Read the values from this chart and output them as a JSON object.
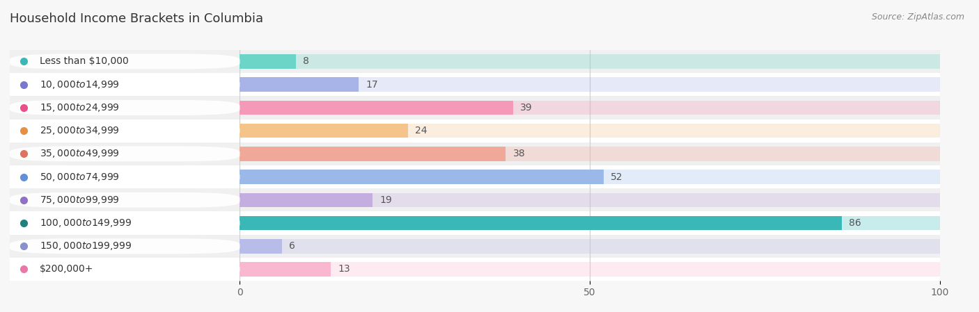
{
  "title": "Household Income Brackets in Columbia",
  "source": "Source: ZipAtlas.com",
  "categories": [
    "Less than $10,000",
    "$10,000 to $14,999",
    "$15,000 to $24,999",
    "$25,000 to $34,999",
    "$35,000 to $49,999",
    "$50,000 to $74,999",
    "$75,000 to $99,999",
    "$100,000 to $149,999",
    "$150,000 to $199,999",
    "$200,000+"
  ],
  "values": [
    8,
    17,
    39,
    24,
    38,
    52,
    19,
    86,
    6,
    13
  ],
  "bar_colors": [
    "#6dd5c8",
    "#a8b4e8",
    "#f499b8",
    "#f5c48a",
    "#f0a898",
    "#9ab8e8",
    "#c4aee0",
    "#3ab8b8",
    "#b8bce8",
    "#f9b8d0"
  ],
  "dot_colors": [
    "#3ab8b8",
    "#7878d0",
    "#e8508a",
    "#e89040",
    "#e07060",
    "#6090d8",
    "#9070c8",
    "#208080",
    "#8890d0",
    "#e878a8"
  ],
  "xlim": [
    0,
    100
  ],
  "xticks": [
    0,
    50,
    100
  ],
  "background_color": "#f7f7f7",
  "row_colors": [
    "#ffffff",
    "#f0f0f0"
  ],
  "title_fontsize": 13,
  "label_fontsize": 10,
  "value_fontsize": 10,
  "source_fontsize": 9
}
